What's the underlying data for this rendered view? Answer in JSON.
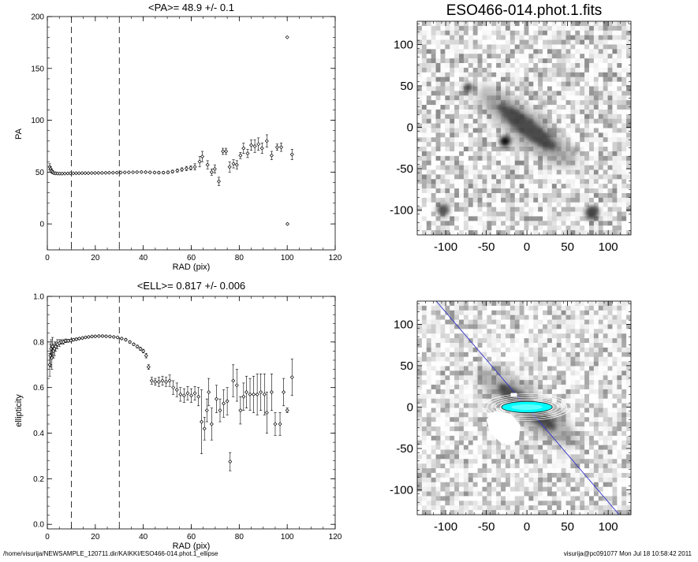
{
  "footer": {
    "path": "/home/visurija/NEWSAMPLE_120711.dir/KAIKKI/ESO466-014.phot.1_ellipse",
    "user": "visurija@pc091077  Mon Jul 18 10:58:42 2011"
  },
  "chart_data": [
    {
      "type": "scatter",
      "title": "<PA>=  48.9 +/-   0.1",
      "xlabel": "RAD (pix)",
      "ylabel": "PA",
      "xlim": [
        0,
        120
      ],
      "ylim": [
        -25,
        200
      ],
      "xticks": [
        0,
        20,
        40,
        60,
        80,
        100,
        120
      ],
      "yticks": [
        0,
        50,
        100,
        150,
        200
      ],
      "xtick_labels": [
        "0",
        "20",
        "40",
        "60",
        "80",
        "100",
        "120"
      ],
      "ytick_labels": [
        "0",
        "50",
        "100",
        "150",
        "200"
      ],
      "vlines": [
        10,
        30
      ],
      "points": [
        {
          "x": 1.0,
          "y": 55,
          "err": 3
        },
        {
          "x": 1.4,
          "y": 53,
          "err": 2
        },
        {
          "x": 1.8,
          "y": 51,
          "err": 2
        },
        {
          "x": 2.3,
          "y": 50,
          "err": 1.5
        },
        {
          "x": 2.8,
          "y": 49,
          "err": 1
        },
        {
          "x": 3.5,
          "y": 48.8,
          "err": 0.8
        },
        {
          "x": 4.3,
          "y": 48.6,
          "err": 0.7
        },
        {
          "x": 5.2,
          "y": 48.5,
          "err": 0.6
        },
        {
          "x": 6.2,
          "y": 48.5,
          "err": 0.5
        },
        {
          "x": 7.3,
          "y": 48.6,
          "err": 0.5
        },
        {
          "x": 8.5,
          "y": 48.7,
          "err": 0.5
        },
        {
          "x": 9.6,
          "y": 48.8,
          "err": 0.5
        },
        {
          "x": 10.8,
          "y": 48.8,
          "err": 0.5
        },
        {
          "x": 12.0,
          "y": 48.9,
          "err": 0.5
        },
        {
          "x": 13.2,
          "y": 48.9,
          "err": 0.5
        },
        {
          "x": 14.5,
          "y": 49.0,
          "err": 0.5
        },
        {
          "x": 15.8,
          "y": 49.0,
          "err": 0.5
        },
        {
          "x": 17.1,
          "y": 49.0,
          "err": 0.5
        },
        {
          "x": 18.5,
          "y": 49.1,
          "err": 0.5
        },
        {
          "x": 19.9,
          "y": 49.1,
          "err": 0.5
        },
        {
          "x": 21.3,
          "y": 49.2,
          "err": 0.5
        },
        {
          "x": 22.8,
          "y": 49.2,
          "err": 0.5
        },
        {
          "x": 24.3,
          "y": 49.3,
          "err": 0.5
        },
        {
          "x": 25.8,
          "y": 49.4,
          "err": 0.5
        },
        {
          "x": 27.4,
          "y": 49.4,
          "err": 0.5
        },
        {
          "x": 29.0,
          "y": 49.5,
          "err": 0.5
        },
        {
          "x": 30.6,
          "y": 49.6,
          "err": 0.5
        },
        {
          "x": 32.3,
          "y": 49.7,
          "err": 0.5
        },
        {
          "x": 34.0,
          "y": 49.8,
          "err": 0.5
        },
        {
          "x": 35.7,
          "y": 49.9,
          "err": 0.5
        },
        {
          "x": 37.4,
          "y": 50.0,
          "err": 0.6
        },
        {
          "x": 39.2,
          "y": 50.1,
          "err": 0.6
        },
        {
          "x": 41.0,
          "y": 50.0,
          "err": 0.7
        },
        {
          "x": 42.8,
          "y": 49.8,
          "err": 0.8
        },
        {
          "x": 44.7,
          "y": 49.6,
          "err": 0.9
        },
        {
          "x": 46.5,
          "y": 49.5,
          "err": 1
        },
        {
          "x": 48.4,
          "y": 49.5,
          "err": 1
        },
        {
          "x": 50.3,
          "y": 49.8,
          "err": 1.2
        },
        {
          "x": 52.2,
          "y": 50.5,
          "err": 1.3
        },
        {
          "x": 54.2,
          "y": 51.5,
          "err": 1.5
        },
        {
          "x": 56.1,
          "y": 52.5,
          "err": 1.6
        },
        {
          "x": 58.0,
          "y": 53.5,
          "err": 2
        },
        {
          "x": 59.8,
          "y": 54,
          "err": 2
        },
        {
          "x": 61.5,
          "y": 55,
          "err": 3
        },
        {
          "x": 63.5,
          "y": 60,
          "err": 5
        },
        {
          "x": 64.6,
          "y": 65,
          "err": 5
        },
        {
          "x": 66.8,
          "y": 57,
          "err": 4
        },
        {
          "x": 68.5,
          "y": 50,
          "err": 3
        },
        {
          "x": 69.8,
          "y": 53,
          "err": 4
        },
        {
          "x": 71.5,
          "y": 41,
          "err": 4
        },
        {
          "x": 73.2,
          "y": 70,
          "err": 3
        },
        {
          "x": 74.5,
          "y": 70,
          "err": 3
        },
        {
          "x": 76.0,
          "y": 55,
          "err": 5
        },
        {
          "x": 77.6,
          "y": 58,
          "err": 4
        },
        {
          "x": 79.0,
          "y": 57,
          "err": 4
        },
        {
          "x": 80.5,
          "y": 66,
          "err": 3
        },
        {
          "x": 81.8,
          "y": 73,
          "err": 5
        },
        {
          "x": 83.5,
          "y": 68,
          "err": 4
        },
        {
          "x": 85.0,
          "y": 76,
          "err": 5
        },
        {
          "x": 86.5,
          "y": 75,
          "err": 6
        },
        {
          "x": 88.0,
          "y": 77,
          "err": 6
        },
        {
          "x": 89.5,
          "y": 73,
          "err": 5
        },
        {
          "x": 91.5,
          "y": 80,
          "err": 6
        },
        {
          "x": 93.5,
          "y": 66,
          "err": 4
        },
        {
          "x": 95.8,
          "y": 74,
          "err": 3
        },
        {
          "x": 97.5,
          "y": 74,
          "err": 4
        },
        {
          "x": 100.0,
          "y": 180,
          "err": 0
        },
        {
          "x": 100.1,
          "y": 0,
          "err": 0
        },
        {
          "x": 102.0,
          "y": 67,
          "err": 5
        }
      ]
    },
    {
      "type": "image",
      "title": "ESO466-014.phot.1.fits",
      "xlim": [
        -135,
        128
      ],
      "ylim": [
        -130,
        128
      ],
      "xticks": [
        -100,
        -50,
        0,
        50,
        100
      ],
      "yticks": [
        -100,
        -50,
        0,
        50,
        100
      ],
      "xtick_labels": [
        "-100",
        "-50",
        "0",
        "50",
        "100"
      ],
      "ytick_labels": [
        "-100",
        "-50",
        "0",
        "50",
        "100"
      ]
    },
    {
      "type": "scatter",
      "title": "<ELL>= 0.817 +/-  0.006",
      "xlabel": "RAD (pix)",
      "ylabel": "ellipticity",
      "xlim": [
        0,
        120
      ],
      "ylim": [
        -0.02,
        1.0
      ],
      "xticks": [
        0,
        20,
        40,
        60,
        80,
        100,
        120
      ],
      "yticks": [
        0.0,
        0.2,
        0.4,
        0.6,
        0.8,
        1.0
      ],
      "xtick_labels": [
        "0",
        "20",
        "40",
        "60",
        "80",
        "100",
        "120"
      ],
      "ytick_labels": [
        "0.0",
        "0.2",
        "0.4",
        "0.6",
        "0.8",
        "1.0"
      ],
      "vlines": [
        10,
        30
      ],
      "points": [
        {
          "x": 1.0,
          "y": 0.7,
          "err": 0.05
        },
        {
          "x": 1.3,
          "y": 0.74,
          "err": 0.05
        },
        {
          "x": 1.6,
          "y": 0.77,
          "err": 0.04
        },
        {
          "x": 1.9,
          "y": 0.73,
          "err": 0.05
        },
        {
          "x": 2.2,
          "y": 0.78,
          "err": 0.04
        },
        {
          "x": 2.6,
          "y": 0.76,
          "err": 0.03
        },
        {
          "x": 3.0,
          "y": 0.77,
          "err": 0.03
        },
        {
          "x": 3.5,
          "y": 0.78,
          "err": 0.02
        },
        {
          "x": 4.2,
          "y": 0.79,
          "err": 0.02
        },
        {
          "x": 5.0,
          "y": 0.795,
          "err": 0.015
        },
        {
          "x": 5.8,
          "y": 0.8,
          "err": 0.01
        },
        {
          "x": 6.7,
          "y": 0.8,
          "err": 0.01
        },
        {
          "x": 7.7,
          "y": 0.805,
          "err": 0.008
        },
        {
          "x": 8.7,
          "y": 0.805,
          "err": 0.006
        },
        {
          "x": 9.8,
          "y": 0.807,
          "err": 0.005
        },
        {
          "x": 10.9,
          "y": 0.81,
          "err": 0.005
        },
        {
          "x": 12.1,
          "y": 0.812,
          "err": 0.005
        },
        {
          "x": 13.3,
          "y": 0.815,
          "err": 0.004
        },
        {
          "x": 14.6,
          "y": 0.817,
          "err": 0.004
        },
        {
          "x": 15.9,
          "y": 0.82,
          "err": 0.004
        },
        {
          "x": 17.2,
          "y": 0.822,
          "err": 0.004
        },
        {
          "x": 18.6,
          "y": 0.824,
          "err": 0.004
        },
        {
          "x": 20.0,
          "y": 0.825,
          "err": 0.004
        },
        {
          "x": 21.5,
          "y": 0.826,
          "err": 0.004
        },
        {
          "x": 23.0,
          "y": 0.826,
          "err": 0.004
        },
        {
          "x": 24.5,
          "y": 0.825,
          "err": 0.004
        },
        {
          "x": 26.1,
          "y": 0.824,
          "err": 0.004
        },
        {
          "x": 27.7,
          "y": 0.822,
          "err": 0.004
        },
        {
          "x": 29.3,
          "y": 0.82,
          "err": 0.004
        },
        {
          "x": 31.0,
          "y": 0.815,
          "err": 0.004
        },
        {
          "x": 32.7,
          "y": 0.81,
          "err": 0.005
        },
        {
          "x": 34.4,
          "y": 0.8,
          "err": 0.005
        },
        {
          "x": 36.0,
          "y": 0.79,
          "err": 0.005
        },
        {
          "x": 37.5,
          "y": 0.78,
          "err": 0.006
        },
        {
          "x": 38.8,
          "y": 0.77,
          "err": 0.007
        },
        {
          "x": 40.0,
          "y": 0.76,
          "err": 0.008
        },
        {
          "x": 41.2,
          "y": 0.74,
          "err": 0.01
        },
        {
          "x": 42.2,
          "y": 0.69,
          "err": 0.01
        },
        {
          "x": 43.5,
          "y": 0.63,
          "err": 0.015
        },
        {
          "x": 45.0,
          "y": 0.625,
          "err": 0.015
        },
        {
          "x": 46.5,
          "y": 0.625,
          "err": 0.02
        },
        {
          "x": 48.0,
          "y": 0.63,
          "err": 0.02
        },
        {
          "x": 49.5,
          "y": 0.625,
          "err": 0.02
        },
        {
          "x": 51.0,
          "y": 0.63,
          "err": 0.025
        },
        {
          "x": 52.5,
          "y": 0.6,
          "err": 0.03
        },
        {
          "x": 54.0,
          "y": 0.59,
          "err": 0.03
        },
        {
          "x": 55.5,
          "y": 0.57,
          "err": 0.03
        },
        {
          "x": 57.0,
          "y": 0.565,
          "err": 0.03
        },
        {
          "x": 58.5,
          "y": 0.575,
          "err": 0.03
        },
        {
          "x": 60.0,
          "y": 0.565,
          "err": 0.03
        },
        {
          "x": 61.5,
          "y": 0.575,
          "err": 0.03
        },
        {
          "x": 63.0,
          "y": 0.56,
          "err": 0.04
        },
        {
          "x": 64.3,
          "y": 0.45,
          "err": 0.14
        },
        {
          "x": 65.5,
          "y": 0.42,
          "err": 0.05
        },
        {
          "x": 66.5,
          "y": 0.5,
          "err": 0.05
        },
        {
          "x": 67.3,
          "y": 0.58,
          "err": 0.06
        },
        {
          "x": 68.5,
          "y": 0.44,
          "err": 0.07
        },
        {
          "x": 70.5,
          "y": 0.55,
          "err": 0.06
        },
        {
          "x": 72.0,
          "y": 0.5,
          "err": 0.05
        },
        {
          "x": 73.5,
          "y": 0.53,
          "err": 0.06
        },
        {
          "x": 75.0,
          "y": 0.54,
          "err": 0.06
        },
        {
          "x": 76.2,
          "y": 0.275,
          "err": 0.04
        },
        {
          "x": 77.5,
          "y": 0.63,
          "err": 0.07
        },
        {
          "x": 79.0,
          "y": 0.61,
          "err": 0.07
        },
        {
          "x": 80.5,
          "y": 0.5,
          "err": 0.06
        },
        {
          "x": 81.8,
          "y": 0.56,
          "err": 0.06
        },
        {
          "x": 83.0,
          "y": 0.58,
          "err": 0.07
        },
        {
          "x": 84.5,
          "y": 0.57,
          "err": 0.07
        },
        {
          "x": 86.0,
          "y": 0.57,
          "err": 0.08
        },
        {
          "x": 87.5,
          "y": 0.57,
          "err": 0.09
        },
        {
          "x": 89.0,
          "y": 0.58,
          "err": 0.08
        },
        {
          "x": 90.5,
          "y": 0.57,
          "err": 0.09
        },
        {
          "x": 91.5,
          "y": 0.49,
          "err": 0.09
        },
        {
          "x": 93.5,
          "y": 0.58,
          "err": 0.08
        },
        {
          "x": 95.0,
          "y": 0.44,
          "err": 0.05
        },
        {
          "x": 97.0,
          "y": 0.44,
          "err": 0.05
        },
        {
          "x": 98.5,
          "y": 0.58,
          "err": 0.06
        },
        {
          "x": 100.0,
          "y": 0.5,
          "err": 0.01
        },
        {
          "x": 102.0,
          "y": 0.645,
          "err": 0.08
        }
      ]
    },
    {
      "type": "image",
      "title": "",
      "xlim": [
        -135,
        128
      ],
      "ylim": [
        -130,
        128
      ],
      "xticks": [
        -100,
        -50,
        0,
        50,
        100
      ],
      "yticks": [
        -100,
        -50,
        0,
        50,
        100
      ],
      "xtick_labels": [
        "-100",
        "-50",
        "0",
        "50",
        "100"
      ],
      "ytick_labels": [
        "-100",
        "-50",
        "0",
        "50",
        "100"
      ],
      "overlay": {
        "ellipse_color": "#ffffff",
        "fill_color": "#00ffff",
        "line_color": "#3333cc",
        "pa_deg": 48.9,
        "ellipticity": 0.817
      }
    }
  ]
}
